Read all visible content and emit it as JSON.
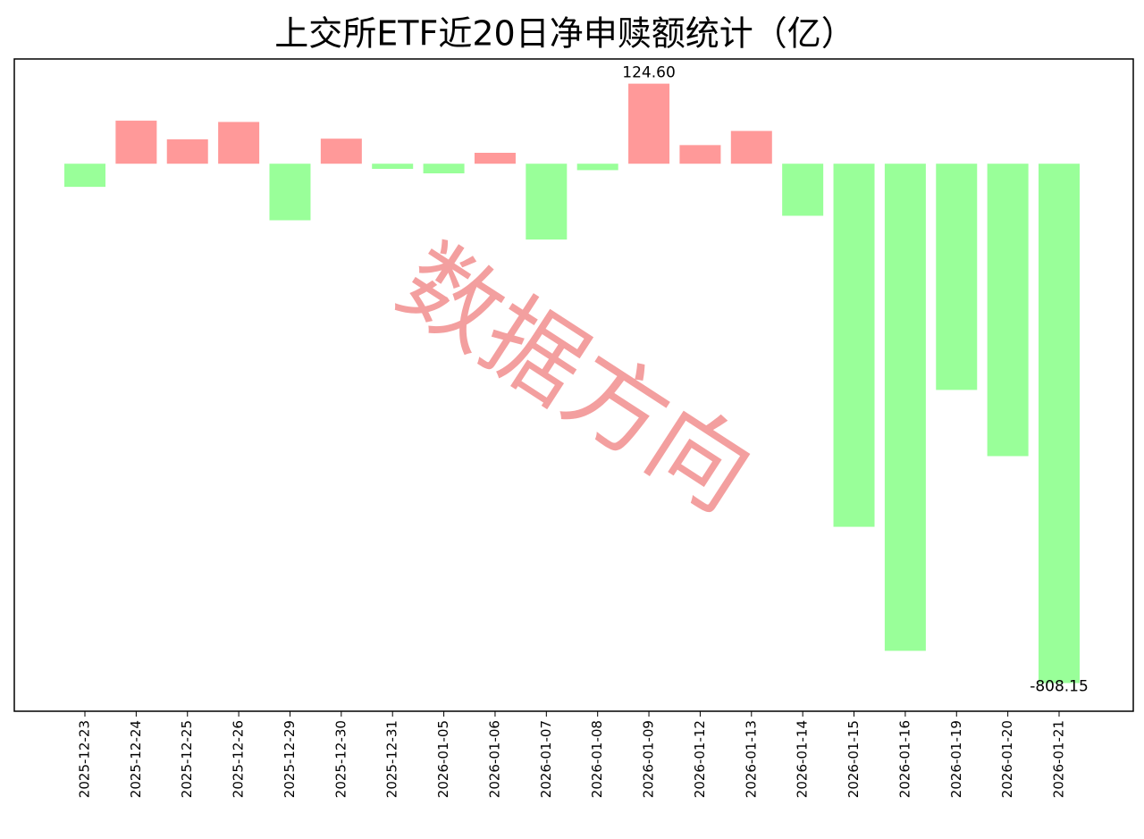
{
  "chart_data": {
    "type": "bar",
    "title": "上交所ETF近20日净申赎额统计（亿）",
    "watermark": "数据方向",
    "categories": [
      "2025-12-23",
      "2025-12-24",
      "2025-12-25",
      "2025-12-26",
      "2025-12-29",
      "2025-12-30",
      "2025-12-31",
      "2026-01-05",
      "2026-01-06",
      "2026-01-07",
      "2026-01-08",
      "2026-01-09",
      "2026-01-12",
      "2026-01-13",
      "2026-01-14",
      "2026-01-15",
      "2026-01-16",
      "2026-01-19",
      "2026-01-20",
      "2026-01-21"
    ],
    "values": [
      -36,
      67,
      38,
      65,
      -88,
      39,
      -8,
      -15,
      17,
      -118,
      -10,
      124.6,
      29,
      51,
      -81,
      -565,
      -758,
      -352,
      -455,
      -808.15
    ],
    "value_labels": [
      null,
      null,
      null,
      null,
      null,
      null,
      null,
      null,
      null,
      null,
      null,
      "124.60",
      null,
      null,
      null,
      null,
      null,
      null,
      null,
      "-808.15"
    ],
    "positive_color": "#ff9999",
    "negative_color": "#99ff99",
    "ylim": [
      -852,
      163
    ]
  }
}
